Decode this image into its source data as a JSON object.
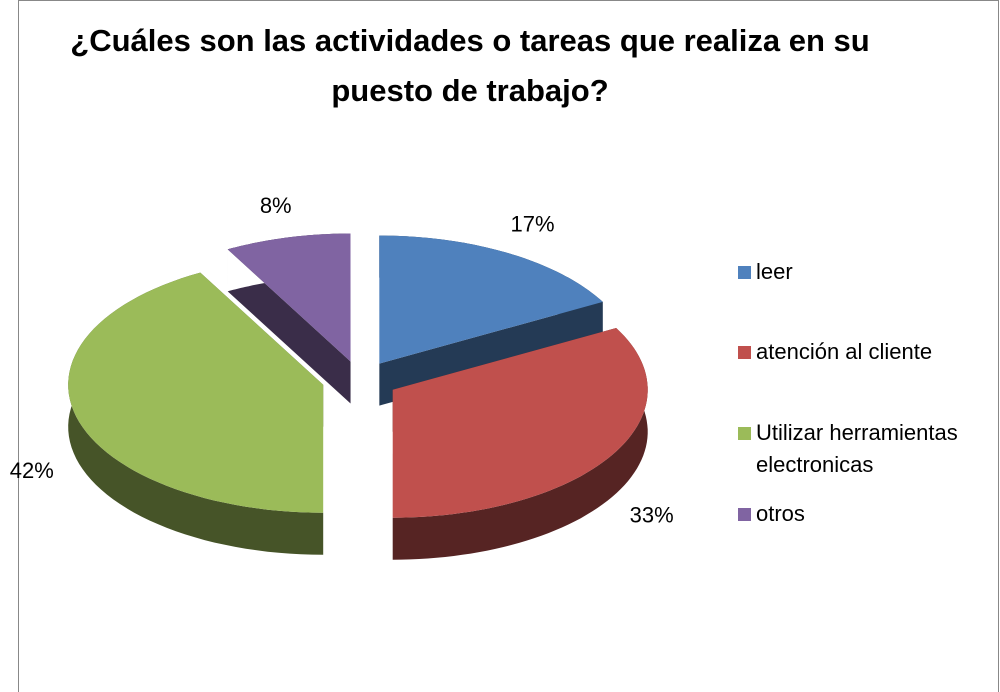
{
  "chart_data": {
    "type": "pie",
    "title": "¿Cuáles son las actividades o tareas que realiza en su puesto de trabajo?",
    "categories": [
      "leer",
      "atención al cliente",
      "Utilizar herramientas electronicas",
      "otros"
    ],
    "values": [
      17,
      33,
      42,
      8
    ],
    "value_labels": [
      "17%",
      "33%",
      "42%",
      "8%"
    ],
    "colors": [
      "#4f81bd",
      "#c0504d",
      "#9bbb59",
      "#8064a2"
    ],
    "legend": "right"
  }
}
